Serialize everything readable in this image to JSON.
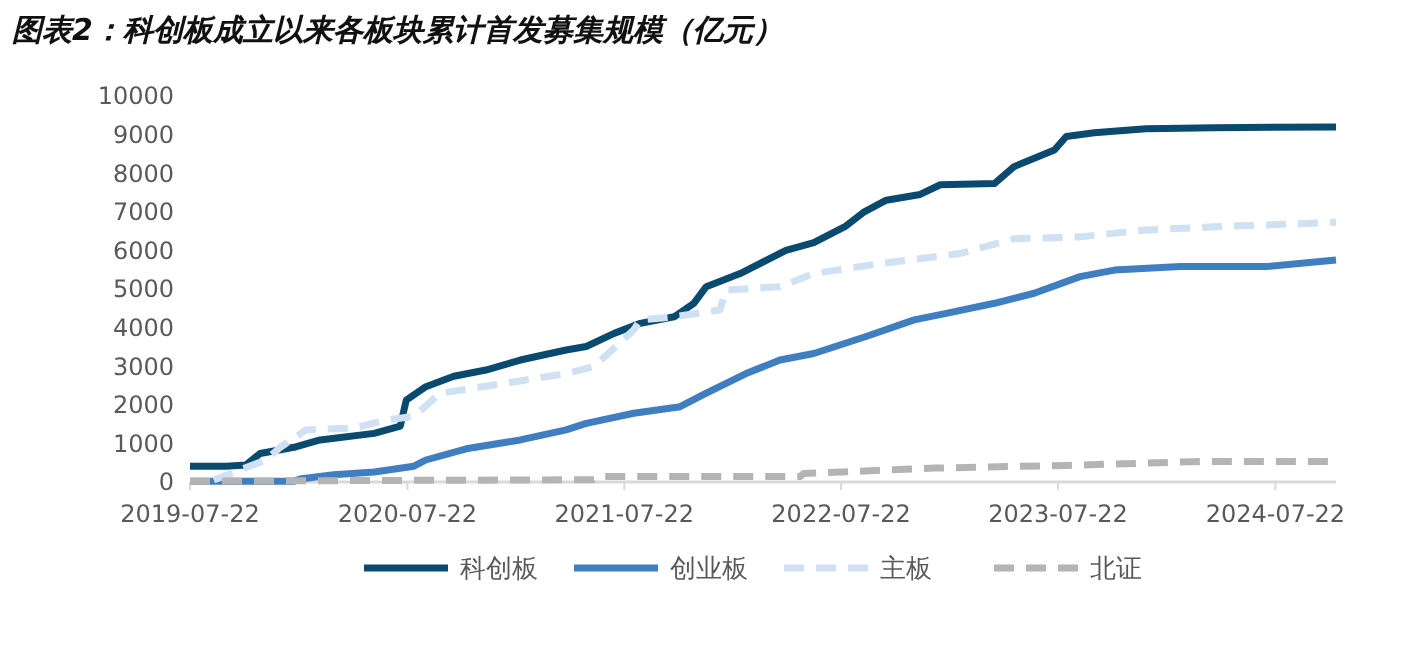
{
  "chart_data": {
    "type": "line",
    "title": "图表2：科创板成立以来各板块累计首发募集规模（亿元）",
    "xlim": [
      "2019-07-22",
      "2024-11-01"
    ],
    "xticks": [
      "2019-07-22",
      "2020-07-22",
      "2021-07-22",
      "2022-07-22",
      "2023-07-22",
      "2024-07-22"
    ],
    "ylim": [
      0,
      10000
    ],
    "yticks": [
      0,
      1000,
      2000,
      3000,
      4000,
      5000,
      6000,
      7000,
      8000,
      9000,
      10000
    ],
    "grid": false,
    "legend": "bottom",
    "marker": "none",
    "series": [
      {
        "name": "科创板",
        "color": "#0b4a6f",
        "line_style": "solid",
        "x": [
          "2019-07-22",
          "2019-09-21",
          "2019-10-24",
          "2019-11-17",
          "2020-01-13",
          "2020-02-26",
          "2020-05-27",
          "2020-07-10",
          "2020-07-20",
          "2020-08-22",
          "2020-10-08",
          "2020-12-01",
          "2021-01-28",
          "2021-04-15",
          "2021-05-19",
          "2021-07-05",
          "2021-08-18",
          "2021-10-14",
          "2021-11-16",
          "2021-12-07",
          "2022-02-02",
          "2022-04-20",
          "2022-06-06",
          "2022-07-30",
          "2022-08-30",
          "2022-10-06",
          "2022-12-02",
          "2023-01-05",
          "2023-04-06",
          "2023-05-09",
          "2023-07-16",
          "2023-08-05",
          "2023-09-21",
          "2023-12-17",
          "2024-04-10",
          "2024-11-01"
        ],
        "values": [
          410,
          410,
          440,
          740,
          900,
          1090,
          1260,
          1450,
          2120,
          2470,
          2740,
          2900,
          3160,
          3420,
          3510,
          3850,
          4110,
          4280,
          4630,
          5060,
          5400,
          6000,
          6200,
          6630,
          7000,
          7300,
          7450,
          7700,
          7730,
          8170,
          8600,
          8950,
          9050,
          9150,
          9180,
          9200
        ]
      },
      {
        "name": "创业板",
        "color": "#3f7ec0",
        "line_style": "solid",
        "x": [
          "2019-07-22",
          "2020-01-13",
          "2020-01-23",
          "2020-03-20",
          "2020-05-27",
          "2020-08-02",
          "2020-08-22",
          "2020-10-29",
          "2021-01-28",
          "2021-04-15",
          "2021-05-19",
          "2021-08-07",
          "2021-10-24",
          "2021-12-07",
          "2022-02-12",
          "2022-04-10",
          "2022-06-06",
          "2022-09-02",
          "2022-11-22",
          "2023-01-15",
          "2023-04-06",
          "2023-06-12",
          "2023-08-28",
          "2023-10-25",
          "2024-02-13",
          "2024-07-06",
          "2024-11-01"
        ],
        "values": [
          20,
          20,
          80,
          190,
          260,
          410,
          570,
          860,
          1090,
          1350,
          1520,
          1780,
          1950,
          2300,
          2810,
          3160,
          3330,
          3770,
          4200,
          4370,
          4630,
          4890,
          5320,
          5490,
          5580,
          5580,
          5750
        ]
      },
      {
        "name": "主板",
        "color": "#cfe1f2",
        "line_style": "dashed",
        "x": [
          "2019-08-31",
          "2019-11-27",
          "2019-12-21",
          "2020-02-02",
          "2020-04-23",
          "2020-06-16",
          "2020-08-02",
          "2020-09-15",
          "2021-01-04",
          "2021-04-15",
          "2021-06-01",
          "2021-08-07",
          "2021-08-18",
          "2021-10-14",
          "2021-12-30",
          "2022-01-09",
          "2022-04-10",
          "2022-06-06",
          "2022-09-26",
          "2023-02-07",
          "2023-05-09",
          "2023-08-28",
          "2023-12-17",
          "2024-04-10",
          "2024-11-01"
        ],
        "values": [
          50,
          570,
          900,
          1350,
          1400,
          1600,
          1700,
          2300,
          2560,
          2810,
          2990,
          3940,
          4200,
          4280,
          4460,
          4970,
          5060,
          5400,
          5660,
          5920,
          6300,
          6350,
          6530,
          6610,
          6730
        ]
      },
      {
        "name": "北证",
        "color": "#b4b4b4",
        "line_style": "dashed",
        "x": [
          "2019-07-22",
          "2021-06-01",
          "2021-06-11",
          "2022-05-14",
          "2022-05-20",
          "2022-12-26",
          "2023-08-05",
          "2024-03-17",
          "2024-11-01"
        ],
        "values": [
          20,
          60,
          140,
          140,
          220,
          360,
          430,
          530,
          530
        ]
      }
    ]
  }
}
